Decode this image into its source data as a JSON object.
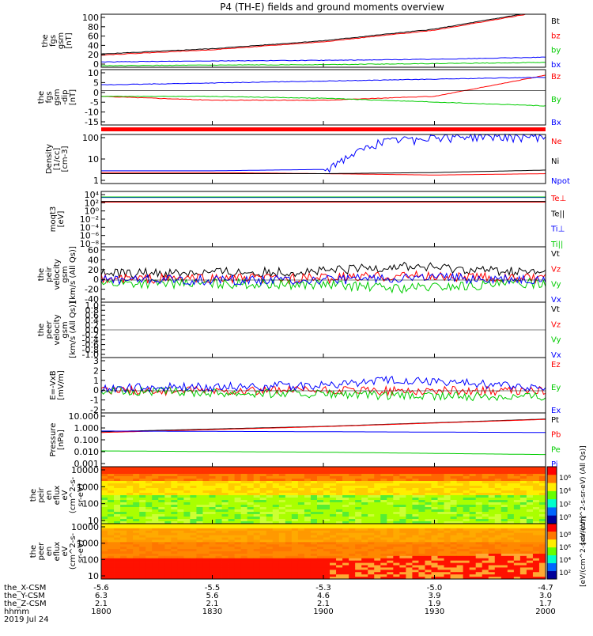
{
  "title": "P4 (TH-E) fields and ground moments overview",
  "colors": {
    "black": "#000000",
    "red": "#ff0000",
    "green": "#00cc00",
    "blue": "#0000ff"
  },
  "chart_data": [
    {
      "type": "line",
      "panel": "fgs-gsm",
      "ylabel_lines": [
        "the",
        "fgs",
        "gsm",
        "[nT]"
      ],
      "ylim": [
        0,
        100
      ],
      "yticks": [
        "100",
        "80",
        "60",
        "40",
        "20",
        "0"
      ],
      "series": [
        {
          "name": "Bt",
          "color": "#000000",
          "x": [
            1800,
            1830,
            1900,
            1930,
            2000
          ],
          "y": [
            25,
            35,
            50,
            72,
            108
          ]
        },
        {
          "name": "bz",
          "color": "#ff0000",
          "x": [
            1800,
            1830,
            1900,
            1930,
            2000
          ],
          "y": [
            23,
            33,
            48,
            70,
            106
          ]
        },
        {
          "name": "by",
          "color": "#00cc00",
          "x": [
            1800,
            1830,
            1900,
            1930,
            2000
          ],
          "y": [
            3,
            4,
            5,
            7,
            9
          ]
        },
        {
          "name": "bx",
          "color": "#0000ff",
          "x": [
            1800,
            1830,
            1900,
            1930,
            2000
          ],
          "y": [
            10,
            12,
            13,
            15,
            19
          ]
        }
      ]
    },
    {
      "type": "line",
      "panel": "fgs-gsm-dip",
      "ylabel_lines": [
        "the",
        "fgs",
        "gsm",
        "-dip",
        "[nT]"
      ],
      "ylim": [
        -18,
        11
      ],
      "yticks": [
        "10",
        "5",
        "0",
        "-5",
        "-10",
        "-15"
      ],
      "series": [
        {
          "name": "Bz",
          "color": "#ff0000",
          "x": [
            1800,
            1830,
            1900,
            1930,
            2000
          ],
          "y": [
            -3,
            -5,
            -5,
            -3,
            8
          ]
        },
        {
          "name": "By",
          "color": "#00cc00",
          "x": [
            1800,
            1830,
            1900,
            1930,
            2000
          ],
          "y": [
            -3,
            -3,
            -4,
            -6,
            -8
          ]
        },
        {
          "name": "Bx",
          "color": "#0000ff",
          "x": [
            1800,
            1830,
            1900,
            1930,
            2000
          ],
          "y": [
            3,
            4,
            5,
            6,
            7
          ]
        }
      ]
    },
    {
      "type": "line",
      "panel": "density",
      "ylabel_lines": [
        "Density",
        "[1/cc]",
        "[cm-3]"
      ],
      "ylim": [
        0.1,
        300
      ],
      "scale": "log",
      "yticks": [
        "100",
        "10",
        "1"
      ],
      "series": [
        {
          "name": "Ne",
          "color": "#ff0000",
          "x": [
            1800,
            1830,
            1900,
            1930,
            2000
          ],
          "y": [
            0.6,
            0.6,
            0.5,
            0.4,
            0.5
          ]
        },
        {
          "name": "Ni",
          "color": "#000000",
          "x": [
            1800,
            1830,
            1900,
            1930,
            2000
          ],
          "y": [
            0.5,
            0.5,
            0.5,
            0.6,
            0.9
          ]
        },
        {
          "name": "Npot",
          "color": "#0000ff",
          "x": [
            1800,
            1830,
            1900,
            1915,
            1930,
            2000
          ],
          "y": [
            0.8,
            0.8,
            1.0,
            80,
            200,
            200
          ]
        }
      ]
    },
    {
      "type": "line",
      "panel": "temperature",
      "ylabel_lines": [
        "moqt3",
        "[eV]"
      ],
      "ylim": [
        1e-09,
        100000.0
      ],
      "scale": "log",
      "yticks": [
        "10⁴",
        "10²",
        "10⁰",
        "10⁻²",
        "10⁻⁴",
        "10⁻⁶",
        "10⁻⁸"
      ],
      "series": [
        {
          "name": "Te⊥",
          "color": "#ff0000",
          "x": [
            1800,
            1900,
            2000
          ],
          "y": [
            200,
            200,
            200
          ]
        },
        {
          "name": "Te||",
          "color": "#000000",
          "x": [
            1800,
            1900,
            2000
          ],
          "y": [
            300,
            300,
            300
          ]
        },
        {
          "name": "Ti⊥",
          "color": "#0000ff",
          "x": [
            1800,
            1900,
            2000
          ],
          "y": [
            3000,
            3000,
            3000
          ]
        },
        {
          "name": "Ti||",
          "color": "#00cc00",
          "x": [
            1800,
            1900,
            2000
          ],
          "y": [
            4000,
            4000,
            4000
          ]
        }
      ]
    },
    {
      "type": "line",
      "panel": "peir-velocity",
      "ylabel_lines": [
        "the",
        "peir",
        "velocity",
        "gsm",
        "[km/s (All Qs)]"
      ],
      "ylim": [
        -40,
        60
      ],
      "yticks": [
        "60",
        "40",
        "20",
        "0",
        "-20",
        "-40"
      ],
      "series": [
        {
          "name": "Vt",
          "color": "#000000",
          "x": [
            1800,
            1900,
            1920,
            2000
          ],
          "y": [
            12,
            15,
            25,
            12
          ]
        },
        {
          "name": "Vz",
          "color": "#ff0000",
          "x": [
            1800,
            1900,
            1920,
            2000
          ],
          "y": [
            2,
            3,
            8,
            2
          ]
        },
        {
          "name": "Vy",
          "color": "#00cc00",
          "x": [
            1800,
            1900,
            1920,
            2000
          ],
          "y": [
            -5,
            -8,
            -15,
            -5
          ]
        },
        {
          "name": "Vx",
          "color": "#0000ff",
          "x": [
            1800,
            1900,
            1920,
            2000
          ],
          "y": [
            0,
            0,
            5,
            0
          ]
        }
      ]
    },
    {
      "type": "line",
      "panel": "peer-velocity",
      "ylabel_lines": [
        "the",
        "peer",
        "velocity",
        "gsm",
        "[km/s (All Qs)]"
      ],
      "ylim": [
        -1,
        1
      ],
      "yticks": [
        "1.0",
        "0.8",
        "0.6",
        "0.4",
        "0.2",
        "0.0",
        "-0.2",
        "-0.4",
        "-0.6",
        "-0.8",
        "-1.0"
      ],
      "series": [
        {
          "name": "Vt",
          "color": "#000000",
          "x": [],
          "y": []
        },
        {
          "name": "Vz",
          "color": "#ff0000",
          "x": [],
          "y": []
        },
        {
          "name": "Vy",
          "color": "#00cc00",
          "x": [],
          "y": []
        },
        {
          "name": "Vx",
          "color": "#0000ff",
          "x": [],
          "y": []
        }
      ]
    },
    {
      "type": "line",
      "panel": "e-field",
      "ylabel_lines": [
        "E=-VxB",
        "[mV/m]"
      ],
      "ylim": [
        -2,
        3
      ],
      "yticks": [
        "3",
        "2",
        "1",
        "0",
        "-1",
        "-2"
      ],
      "series": [
        {
          "name": "Ez",
          "color": "#ff0000",
          "x": [
            1800,
            1900,
            2000
          ],
          "y": [
            0,
            0,
            0
          ]
        },
        {
          "name": "Ey",
          "color": "#00cc00",
          "x": [
            1800,
            1900,
            1920,
            2000
          ],
          "y": [
            0,
            -0.3,
            -0.5,
            -0.5
          ]
        },
        {
          "name": "Ex",
          "color": "#0000ff",
          "x": [
            1800,
            1900,
            1920,
            2000
          ],
          "y": [
            0.2,
            0.5,
            1.0,
            0.3
          ]
        }
      ]
    },
    {
      "type": "line",
      "panel": "pressure",
      "ylabel_lines": [
        "Pressure",
        "[nPa]"
      ],
      "ylim": [
        0.001,
        10
      ],
      "scale": "log",
      "yticks": [
        "10.000",
        "1.000",
        "0.100",
        "0.010",
        "0.001"
      ],
      "series": [
        {
          "name": "Pt",
          "color": "#000000",
          "x": [
            1800,
            1900,
            2000
          ],
          "y": [
            0.4,
            1.0,
            3.5
          ]
        },
        {
          "name": "Pb",
          "color": "#ff0000",
          "x": [
            1800,
            1900,
            2000
          ],
          "y": [
            0.35,
            0.95,
            3.3
          ]
        },
        {
          "name": "Pe",
          "color": "#00cc00",
          "x": [
            1800,
            1900,
            2000
          ],
          "y": [
            0.015,
            0.012,
            0.008
          ]
        },
        {
          "name": "Pi",
          "color": "#0000ff",
          "x": [
            1800,
            1900,
            2000
          ],
          "y": [
            0.45,
            0.4,
            0.35
          ]
        }
      ]
    },
    {
      "type": "heatmap",
      "panel": "peir-eflux",
      "ylabel_lines": [
        "the",
        "peir",
        "en",
        "eflux",
        "eV",
        "(cm^2-s-",
        "sr-eV)"
      ],
      "ylim": [
        5,
        30000
      ],
      "scale": "log",
      "yticks": [
        "10000",
        "1000",
        "100",
        "10"
      ],
      "colorbar_ticks": [
        "10⁶",
        "10⁴",
        "10²",
        "10⁰"
      ],
      "colorbar_label": "[eV/(cm^2-s-sr-eV) (All Qs)]"
    },
    {
      "type": "heatmap",
      "panel": "peer-eflux",
      "ylabel_lines": [
        "the",
        "peer",
        "en",
        "eflux",
        "eV",
        "(cm^2-s-",
        "sr-eV)"
      ],
      "ylim": [
        5,
        30000
      ],
      "scale": "log",
      "yticks": [
        "10000",
        "1000",
        "100",
        "10"
      ],
      "colorbar_ticks": [
        "10⁸",
        "10⁶",
        "10⁴",
        "10²"
      ],
      "colorbar_label": "[eV/(cm^2-s-sr-eV)]"
    }
  ],
  "xaxis": {
    "row_labels": [
      "the_X-CSM",
      "the_Y-CSM",
      "the_Z-CSM",
      "hhmm"
    ],
    "date": "2019 Jul 24",
    "ticks": [
      {
        "x": 1800,
        "values": [
          "-5.6",
          "6.3",
          "2.1",
          "1800"
        ]
      },
      {
        "x": 1830,
        "values": [
          "-5.5",
          "5.6",
          "2.1",
          "1830"
        ]
      },
      {
        "x": 1900,
        "values": [
          "-5.3",
          "4.6",
          "2.1",
          "1900"
        ]
      },
      {
        "x": 1930,
        "values": [
          "-5.0",
          "3.9",
          "1.9",
          "1930"
        ]
      },
      {
        "x": 2000,
        "values": [
          "-4.7",
          "3.0",
          "1.7",
          "2000"
        ]
      }
    ]
  }
}
